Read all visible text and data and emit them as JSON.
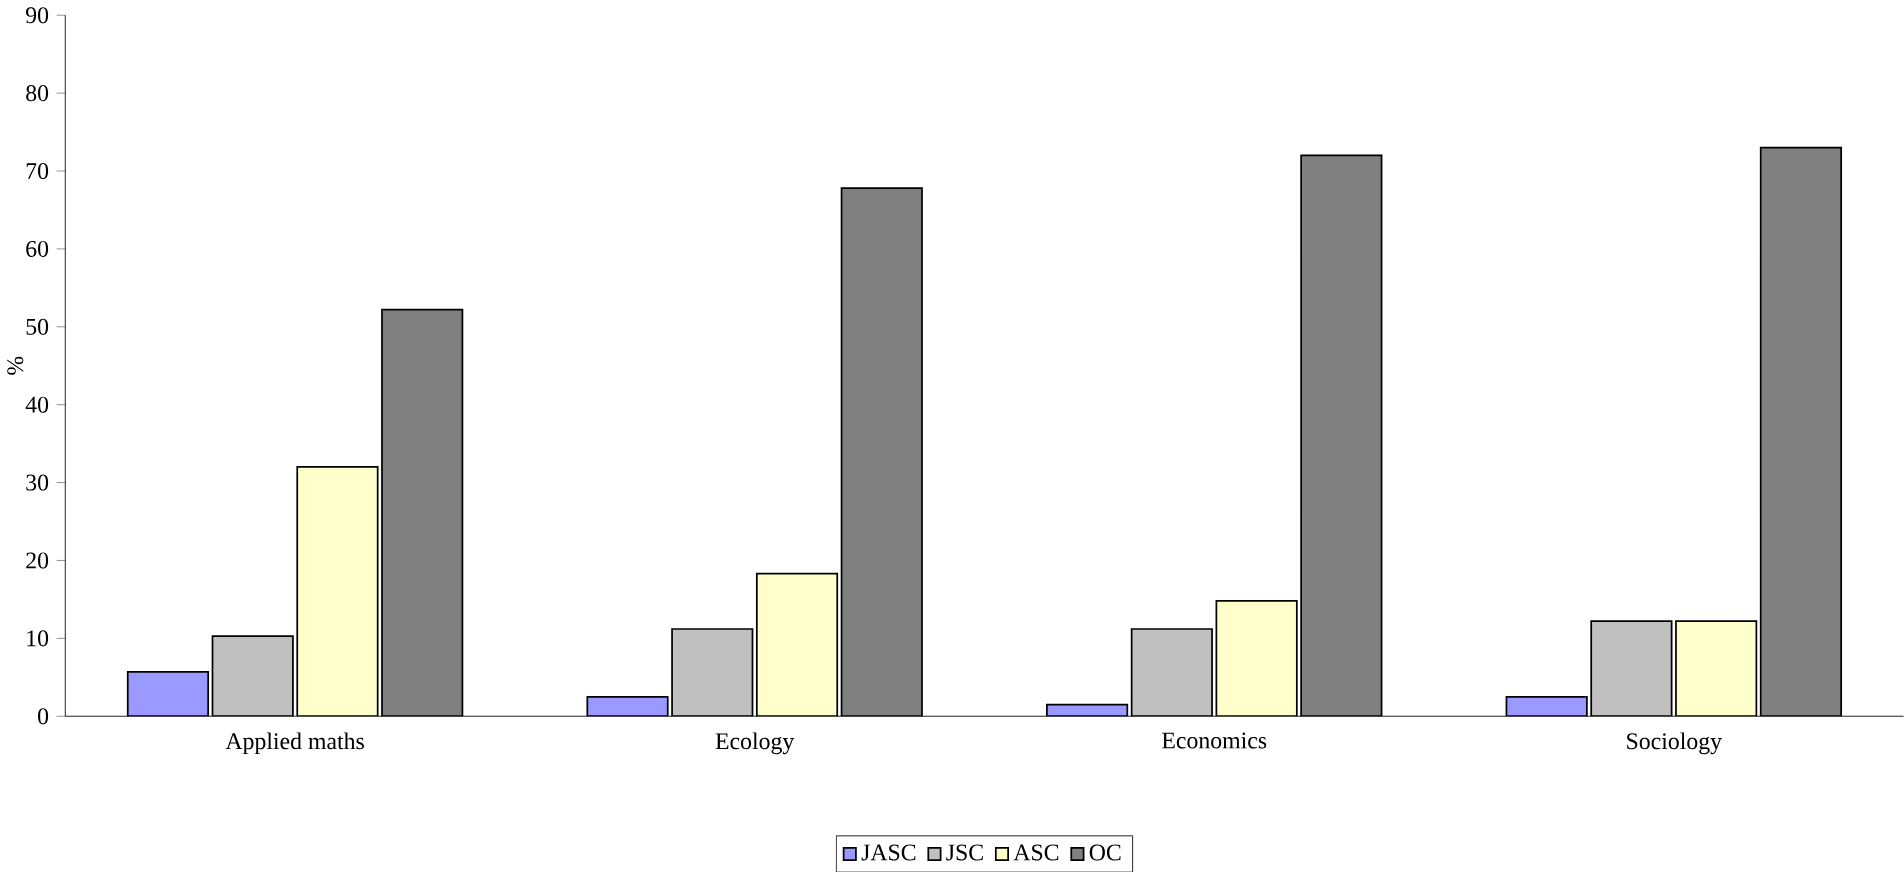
{
  "chart_data": {
    "type": "bar",
    "ylabel": "%",
    "categories": [
      "Applied maths",
      "Ecology",
      "Economics",
      "Sociology"
    ],
    "series": [
      {
        "name": "JASC",
        "color": "#9999ff",
        "values": [
          5.7,
          2.5,
          1.5,
          2.5
        ]
      },
      {
        "name": "JSC",
        "color": "#c0c0c0",
        "values": [
          10.3,
          11.2,
          11.2,
          12.2
        ]
      },
      {
        "name": "ASC",
        "color": "#ffffcc",
        "values": [
          32,
          18.3,
          14.8,
          12.2
        ]
      },
      {
        "name": "OC",
        "color": "#808080",
        "values": [
          52.2,
          67.8,
          72,
          73
        ]
      }
    ],
    "ylim": [
      0,
      90
    ],
    "yticks": [
      0,
      10,
      20,
      30,
      40,
      50,
      60,
      70,
      80,
      90
    ],
    "grid": false,
    "legend": "bottom"
  }
}
